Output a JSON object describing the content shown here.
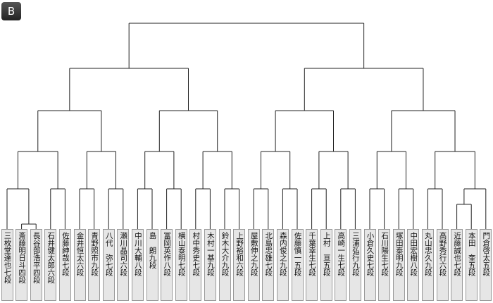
{
  "block": "B",
  "players": [
    "三枚堂達也七段",
    "斎藤明日斗四段",
    "長谷部浩平四段",
    "石井健太郎六段",
    "佐藤紳哉七段",
    "金井恒太六段",
    "青野照市九段",
    "八代　弥七段",
    "瀬川晶司六段",
    "中川大輔八段",
    "島　朗九段",
    "冨岡英作八段",
    "横山泰明七段",
    "村中秀史七段",
    "木村一基九段",
    "鈴木大介九段",
    "上野裕和六段",
    "屋敷伸之九段",
    "北島忠雄七段",
    "森内俊之九段",
    "佐藤慎一五段",
    "千葉幸生七段",
    "上村　亘五段",
    "高崎一生七段",
    "三浦弘行九段",
    "小倉久史七段",
    "石川陽生七段",
    "塚田泰明九段",
    "中田宏樹八段",
    "丸山忠久九段",
    "高野秀行六段",
    "近藤誠也七段",
    "本田　奎五段",
    "門倉啓太五段"
  ]
}
